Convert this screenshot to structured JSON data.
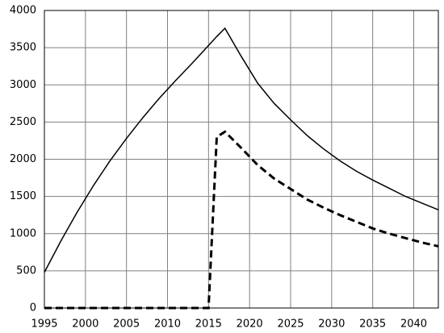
{
  "chart_data": {
    "type": "line",
    "x": [
      1995,
      1997,
      1999,
      2001,
      2003,
      2005,
      2007,
      2009,
      2011,
      2013,
      2015,
      2016,
      2017,
      2019,
      2021,
      2023,
      2025,
      2027,
      2029,
      2031,
      2033,
      2035,
      2037,
      2039,
      2041,
      2043
    ],
    "series": [
      {
        "color": "#000000",
        "dashed": false,
        "values": [
          480,
          900,
          1290,
          1650,
          1980,
          2280,
          2560,
          2820,
          3060,
          3290,
          3530,
          3650,
          3760,
          3380,
          3020,
          2750,
          2530,
          2320,
          2140,
          1980,
          1840,
          1720,
          1610,
          1500,
          1410,
          1320
        ]
      },
      {
        "color": "#000000",
        "dashed": true,
        "values": [
          0,
          0,
          0,
          0,
          0,
          0,
          0,
          0,
          0,
          0,
          0,
          2300,
          2370,
          2150,
          1920,
          1740,
          1600,
          1460,
          1350,
          1250,
          1160,
          1070,
          1000,
          940,
          880,
          830
        ]
      }
    ],
    "xlim": [
      1995,
      2043
    ],
    "xticks": [
      1995,
      2000,
      2005,
      2010,
      2015,
      2020,
      2025,
      2030,
      2035,
      2040
    ],
    "ylim": [
      0,
      4000
    ],
    "yticks": [
      0,
      500,
      1000,
      1500,
      2000,
      2500,
      3000,
      3500,
      4000
    ],
    "grid": true
  }
}
